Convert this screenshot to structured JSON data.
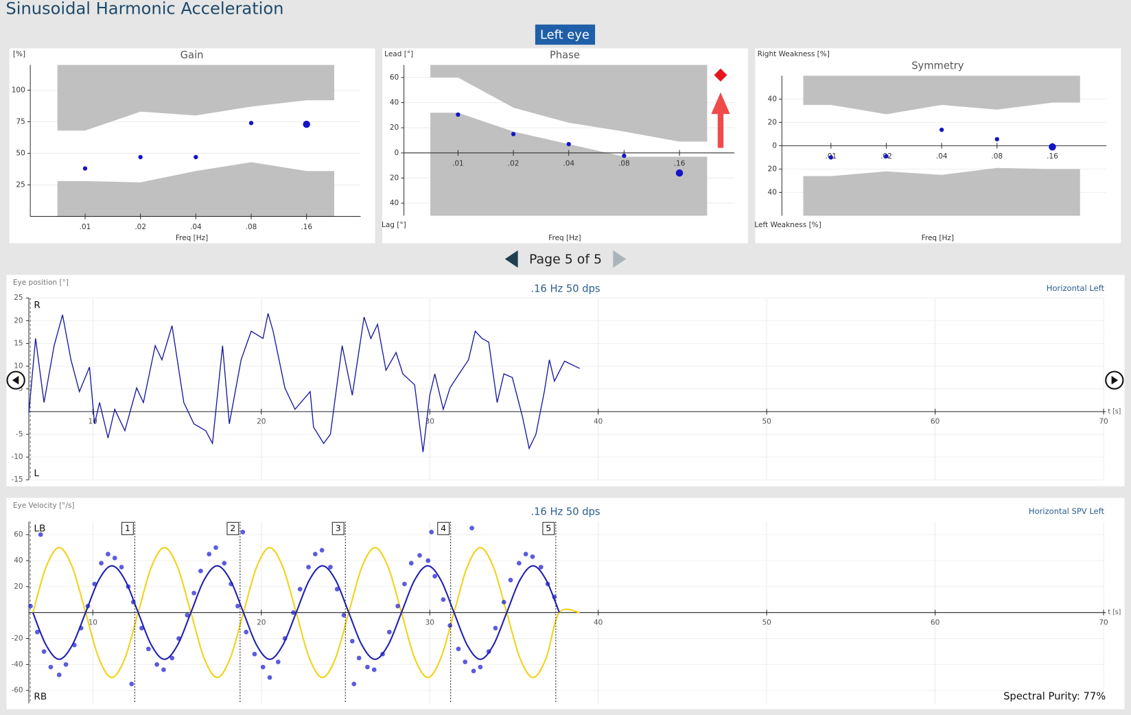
{
  "header": {
    "title": "Sinusoidal Harmonic Acceleration",
    "eye_button": "Left eye"
  },
  "gain": {
    "title": "Gain",
    "y_label": "[%]",
    "x_label": "Freq [Hz]",
    "categories": [
      ".01",
      ".02",
      ".04",
      ".08",
      ".16"
    ],
    "values": [
      38,
      47,
      47,
      74,
      73
    ],
    "highlight": ".16",
    "color": "#1414c8",
    "ylim": [
      0,
      120
    ],
    "yticks": [
      25,
      50,
      75,
      100
    ],
    "normal_upper": [
      68,
      83,
      80,
      87,
      92
    ],
    "normal_lower": [
      28,
      27,
      36,
      43,
      36
    ]
  },
  "phase": {
    "title": "Phase",
    "y_label": "Lead [°]",
    "y_label_bottom": "Lag [°]",
    "x_label": "Freq [Hz]",
    "categories": [
      ".01",
      ".02",
      ".04",
      ".08",
      ".16"
    ],
    "values": [
      30.5,
      15,
      7,
      -2.3,
      -16
    ],
    "highlight": ".16",
    "color": "#1414c8",
    "ylim": [
      -50,
      70
    ],
    "yticks": [
      60,
      40,
      20,
      0,
      {
        "value": -20,
        "label": "20"
      },
      {
        "value": -40,
        "label": "40"
      }
    ],
    "normal_upper": [
      60,
      36,
      24,
      17,
      9
    ],
    "normal_lower": [
      32,
      17,
      7,
      -3,
      -3
    ]
  },
  "symmetry": {
    "title": "Symmetry",
    "y_label": "Right Weakness [%]",
    "y_label_bottom": "Left Weakness [%]",
    "x_label": "Freq [Hz]",
    "categories": [
      ".01",
      ".02",
      ".04",
      ".08",
      ".16"
    ],
    "values": [
      -10,
      -9,
      13.7,
      5.6,
      -1
    ],
    "highlight": ".16",
    "color": "#1414c8",
    "ylim": [
      -60,
      60
    ],
    "yticks": [
      40,
      20,
      0,
      {
        "value": -20,
        "label": "20"
      },
      {
        "value": -40,
        "label": "40"
      }
    ],
    "normal_upper": [
      35,
      27,
      35,
      31,
      37
    ],
    "normal_lower": [
      -26,
      -22,
      -25,
      -19,
      -20
    ]
  },
  "pager": {
    "label": "Page 5 of 5"
  },
  "position": {
    "y_label": "Eye position [°]",
    "subtitle": ".16 Hz 50 dps",
    "channel": "Horizontal Left",
    "top_label": "R",
    "bottom_label": "L",
    "x_label": "t [s]",
    "xlim": [
      6.2,
      70
    ],
    "xticks": [
      10,
      20,
      30,
      40,
      50,
      60,
      70
    ],
    "ylim": [
      -15,
      25
    ],
    "yticks": [
      25,
      20,
      15,
      10,
      5,
      -5,
      -10,
      -15
    ],
    "trace": {
      "color": "#1a1aa0",
      "x": [
        6.2,
        6.6,
        7.1,
        7.7,
        8.2,
        8.7,
        9.2,
        9.8,
        10.1,
        10.4,
        10.9,
        11.3,
        11.9,
        12.6,
        13.0,
        13.7,
        14.1,
        14.7,
        15.4,
        16.0,
        16.7,
        17.1,
        17.7,
        18.1,
        18.8,
        19.4,
        20.1,
        20.4,
        20.7,
        21.4,
        22.0,
        22.9,
        23.1,
        23.7,
        24.1,
        24.8,
        25.4,
        26.1,
        26.5,
        26.9,
        27.4,
        28.0,
        28.4,
        29.1,
        29.6,
        30.0,
        30.3,
        30.8,
        31.2,
        31.6,
        32.3,
        32.7,
        33.1,
        33.5,
        34.0,
        34.4,
        34.9,
        35.5,
        35.9,
        36.3,
        36.8,
        37.1,
        37.4,
        38.0,
        38.9
      ],
      "values": [
        -0.3,
        16.1,
        2.0,
        14.5,
        21.3,
        11.4,
        4.4,
        9.8,
        -2.7,
        2.0,
        -5.8,
        0.5,
        -4.2,
        5.2,
        2.0,
        14.5,
        11.4,
        18.9,
        2.0,
        -2.7,
        -4.2,
        -7.0,
        14.5,
        -2.7,
        11.4,
        17.7,
        16.1,
        21.6,
        17.7,
        5.2,
        0.5,
        4.4,
        -3.4,
        -7.0,
        -5.0,
        14.5,
        3.6,
        20.8,
        16.1,
        19.2,
        9.1,
        13.0,
        8.3,
        5.9,
        -8.9,
        3.6,
        8.3,
        0.5,
        5.2,
        7.5,
        11.4,
        17.7,
        16.1,
        15.3,
        2.0,
        8.3,
        7.5,
        -1.1,
        -8.1,
        -5.0,
        4.4,
        11.4,
        6.7,
        11.1,
        9.5
      ]
    }
  },
  "velocity": {
    "y_label": "Eye Velocity [°/s]",
    "subtitle": ".16 Hz 50 dps",
    "channel": "Horizontal SPV Left",
    "top_label": "LB",
    "bottom_label": "RB",
    "x_label": "t [s]",
    "xlim": [
      6.2,
      70
    ],
    "xticks": [
      10,
      20,
      30,
      40,
      50,
      60,
      70
    ],
    "ylim": [
      -70,
      70
    ],
    "yticks": [
      60,
      40,
      20,
      -20,
      -40,
      -60
    ],
    "stimulus": {
      "color": "#f2d21b",
      "x": [
        6.44,
        7.22,
        8.0,
        8.78,
        9.57,
        10.35,
        11.13,
        11.91,
        12.69,
        13.47,
        14.25,
        15.03,
        15.82,
        16.6,
        17.38,
        18.16,
        18.94,
        19.72,
        20.5,
        21.28,
        22.07,
        22.85,
        23.63,
        24.41,
        25.19,
        25.97,
        26.75,
        27.53,
        28.32,
        29.1,
        29.88,
        30.66,
        31.44,
        32.22,
        33.0,
        33.78,
        34.57,
        35.35,
        36.13,
        36.91,
        37.69,
        38.9
      ],
      "values": [
        0,
        35,
        50,
        35,
        0,
        -35,
        -50,
        -35,
        0,
        35,
        50,
        35,
        0,
        -35,
        -50,
        -35,
        0,
        35,
        50,
        35,
        0,
        -35,
        -50,
        -35,
        0,
        35,
        50,
        35,
        0,
        -35,
        -50,
        -35,
        0,
        35,
        50,
        35,
        0,
        -35,
        -50,
        -35,
        0,
        0
      ]
    },
    "fit": {
      "color": "#1f1fb0",
      "x": [
        6.44,
        7.22,
        8.0,
        8.78,
        9.57,
        10.35,
        11.13,
        11.91,
        12.69,
        13.47,
        14.25,
        15.03,
        15.82,
        16.6,
        17.38,
        18.16,
        18.94,
        19.72,
        20.5,
        21.28,
        22.07,
        22.85,
        23.63,
        24.41,
        25.19,
        25.97,
        26.75,
        27.53,
        28.32,
        29.1,
        29.88,
        30.66,
        31.44,
        32.22,
        33.0,
        33.78,
        34.57,
        35.35,
        36.13,
        36.91,
        37.69
      ],
      "values": [
        0,
        -25,
        -36,
        -25,
        0,
        25,
        36,
        25,
        0,
        -25,
        -36,
        -25,
        0,
        25,
        36,
        25,
        0,
        -25,
        -36,
        -25,
        0,
        25,
        36,
        25,
        0,
        -25,
        -36,
        -25,
        0,
        25,
        36,
        25,
        0,
        -25,
        -36,
        -25,
        0,
        25,
        36,
        25,
        0
      ]
    },
    "points": {
      "color": "#1515d0",
      "x": [
        6.3,
        6.7,
        7.1,
        7.5,
        8.0,
        8.4,
        8.9,
        9.3,
        9.7,
        10.1,
        10.5,
        10.9,
        11.3,
        11.7,
        12.1,
        12.4,
        12.9,
        13.3,
        13.8,
        14.2,
        14.7,
        15.1,
        15.6,
        16.0,
        16.4,
        16.9,
        17.3,
        17.8,
        18.2,
        18.6,
        19.1,
        19.6,
        20.1,
        20.5,
        21.0,
        21.4,
        21.9,
        22.3,
        22.8,
        23.2,
        23.6,
        24.1,
        24.5,
        24.9,
        25.4,
        25.8,
        26.3,
        26.7,
        27.2,
        27.6,
        28.1,
        28.5,
        28.9,
        29.4,
        29.9,
        30.3,
        30.8,
        31.2,
        31.7,
        32.1,
        32.6,
        33.0,
        33.5,
        33.9,
        34.4,
        34.8,
        35.3,
        35.7,
        36.1,
        36.6,
        37.0,
        37.4,
        6.9,
        12.3,
        18.9,
        30.1,
        32.5,
        25.5
      ],
      "values": [
        5,
        -15,
        -30,
        -42,
        -48,
        -40,
        -25,
        -12,
        5,
        22,
        38,
        45,
        42,
        35,
        20,
        8,
        -12,
        -28,
        -40,
        -44,
        -35,
        -20,
        -2,
        15,
        32,
        45,
        50,
        38,
        22,
        5,
        -15,
        -32,
        -42,
        -50,
        -38,
        -20,
        0,
        18,
        35,
        45,
        48,
        35,
        18,
        -2,
        -22,
        -35,
        -42,
        -44,
        -32,
        -15,
        5,
        22,
        38,
        44,
        40,
        28,
        10,
        -10,
        -28,
        -38,
        -45,
        -42,
        -30,
        -12,
        8,
        25,
        38,
        45,
        43,
        35,
        22,
        12,
        60,
        -55,
        62,
        62,
        65,
        -55
      ]
    },
    "cycles": {
      "labels": [
        "1",
        "2",
        "3",
        "4",
        "5"
      ],
      "x": [
        12.49,
        18.74,
        24.99,
        31.24,
        37.48
      ]
    },
    "spectral_purity": "Spectral Purity: 77%"
  }
}
